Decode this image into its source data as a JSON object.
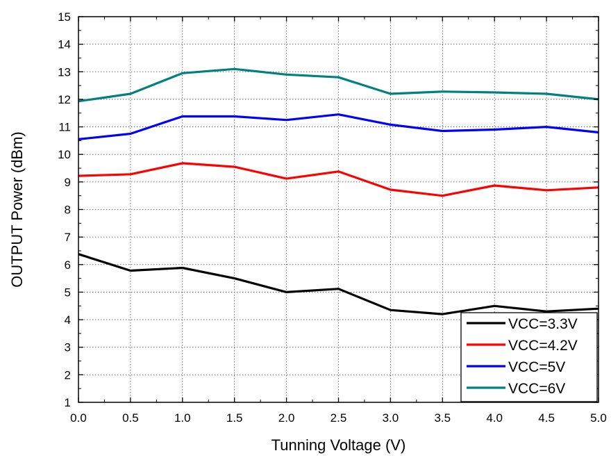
{
  "chart_data": {
    "type": "line",
    "title": "",
    "xlabel": "Tunning Voltage (V)",
    "ylabel": "OUTPUT Power (dBm)",
    "xlim": [
      0.0,
      5.0
    ],
    "ylim": [
      1,
      15
    ],
    "grid": true,
    "legend_position": "bottom-right",
    "x": [
      0.0,
      0.5,
      1.0,
      1.5,
      2.0,
      2.5,
      3.0,
      3.5,
      4.0,
      4.5,
      5.0
    ],
    "x_tick_labels": [
      "0.0",
      "0.5",
      "1.0",
      "1.5",
      "2.0",
      "2.5",
      "3.0",
      "3.5",
      "4.0",
      "4.5",
      "5.0"
    ],
    "y_tick_labels": [
      "1",
      "2",
      "3",
      "4",
      "5",
      "6",
      "7",
      "8",
      "9",
      "10",
      "11",
      "12",
      "13",
      "14",
      "15"
    ],
    "series": [
      {
        "name": "VCC=3.3V",
        "color": "#000000",
        "values": [
          6.38,
          5.78,
          5.88,
          5.5,
          5.0,
          5.12,
          4.35,
          4.2,
          4.5,
          4.3,
          4.4
        ]
      },
      {
        "name": "VCC=4.2V",
        "color": "#ff0000",
        "values": [
          9.22,
          9.28,
          9.68,
          9.55,
          9.12,
          9.38,
          8.72,
          8.5,
          8.87,
          8.7,
          8.8
        ]
      },
      {
        "name": "VCC=5V",
        "color": "#0000ff",
        "values": [
          10.55,
          10.75,
          11.38,
          11.38,
          11.25,
          11.45,
          11.08,
          10.85,
          10.9,
          11.0,
          10.8
        ]
      },
      {
        "name": "VCC=6V",
        "color": "#008080",
        "values": [
          11.93,
          12.2,
          12.95,
          13.1,
          12.9,
          12.8,
          12.2,
          12.28,
          12.25,
          12.2,
          12.0
        ]
      }
    ]
  }
}
